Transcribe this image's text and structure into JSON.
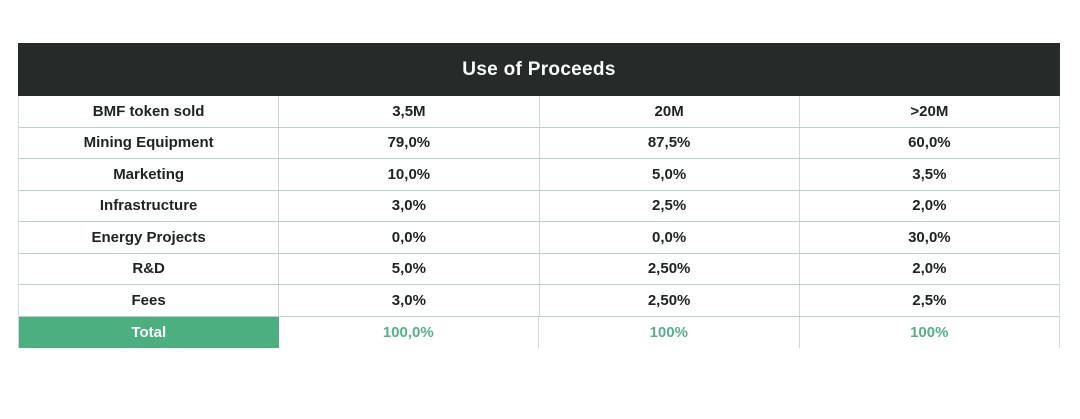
{
  "chart_data": {
    "type": "table",
    "title": "Use of Proceeds",
    "rows": [
      {
        "label": "BMF token sold",
        "values": [
          "3,5M",
          "20M",
          ">20M"
        ]
      },
      {
        "label": "Mining Equipment",
        "values": [
          "79,0%",
          "87,5%",
          "60,0%"
        ]
      },
      {
        "label": "Marketing",
        "values": [
          "10,0%",
          "5,0%",
          "3,5%"
        ]
      },
      {
        "label": "Infrastructure",
        "values": [
          "3,0%",
          "2,5%",
          "2,0%"
        ]
      },
      {
        "label": "Energy Projects",
        "values": [
          "0,0%",
          "0,0%",
          "30,0%"
        ]
      },
      {
        "label": "R&D",
        "values": [
          "5,0%",
          "2,50%",
          "2,0%"
        ]
      },
      {
        "label": "Fees",
        "values": [
          "3,0%",
          "2,50%",
          "2,5%"
        ]
      },
      {
        "label": "Total",
        "values": [
          "100,0%",
          "100%",
          "100%"
        ]
      }
    ],
    "layout": {
      "columns": 4,
      "total_row_highlighted": true
    }
  },
  "colors": {
    "title_bar_bg": "#262b2a",
    "title_text": "#ffffff",
    "total_cell_bg": "#4caf80",
    "total_cell_text": "#ffffff",
    "total_value_text": "#56b286",
    "row_border": "#b8d4c6",
    "column_border": "#d2d6d4",
    "cell_text": "#1f2323",
    "page_bg": "#ffffff"
  }
}
